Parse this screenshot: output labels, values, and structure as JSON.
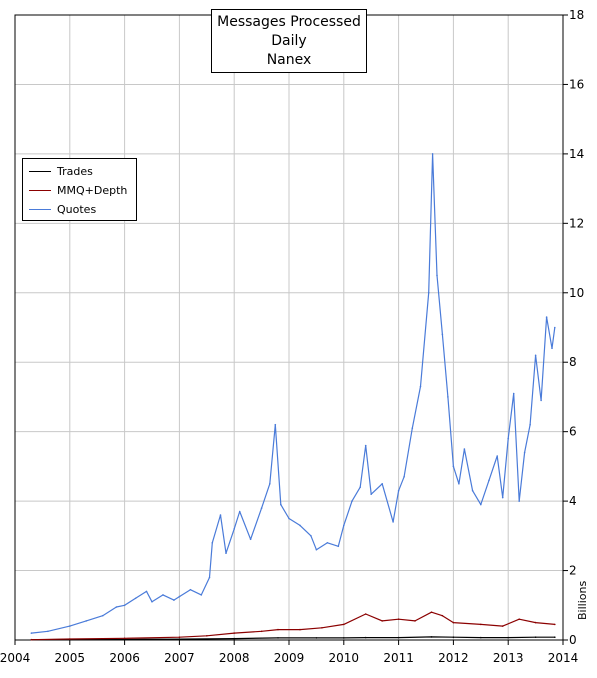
{
  "chart_data": {
    "type": "line",
    "title": [
      "Messages Processed",
      "Daily",
      "Nanex"
    ],
    "xlabel": "",
    "ylabel": "Billions",
    "xlim": [
      2004,
      2014
    ],
    "ylim": [
      0,
      18
    ],
    "x_ticks": [
      "2004",
      "2005",
      "2006",
      "2007",
      "2008",
      "2009",
      "2010",
      "2011",
      "2012",
      "2013",
      "2014"
    ],
    "y_ticks": [
      "0",
      "2",
      "4",
      "6",
      "8",
      "10",
      "12",
      "14",
      "16",
      "18"
    ],
    "grid": true,
    "legend_position": "left",
    "series": [
      {
        "name": "Trades",
        "color": "#000000",
        "x": [
          2004.3,
          2005.0,
          2006.0,
          2007.0,
          2008.0,
          2008.8,
          2009.5,
          2010.0,
          2010.4,
          2011.0,
          2011.6,
          2012.0,
          2012.5,
          2013.0,
          2013.5,
          2013.85
        ],
        "y": [
          0.01,
          0.015,
          0.02,
          0.025,
          0.04,
          0.06,
          0.06,
          0.06,
          0.07,
          0.07,
          0.09,
          0.08,
          0.07,
          0.07,
          0.08,
          0.08
        ]
      },
      {
        "name": "MMQ+Depth",
        "color": "#8b0000",
        "x": [
          2004.3,
          2005.0,
          2006.0,
          2007.0,
          2007.5,
          2008.0,
          2008.5,
          2008.8,
          2009.2,
          2009.6,
          2010.0,
          2010.4,
          2010.7,
          2011.0,
          2011.3,
          2011.6,
          2011.8,
          2012.0,
          2012.5,
          2012.9,
          2013.2,
          2013.5,
          2013.85
        ],
        "y": [
          0.01,
          0.03,
          0.05,
          0.08,
          0.12,
          0.2,
          0.25,
          0.3,
          0.3,
          0.35,
          0.45,
          0.75,
          0.55,
          0.6,
          0.55,
          0.8,
          0.7,
          0.5,
          0.45,
          0.4,
          0.6,
          0.5,
          0.45
        ]
      },
      {
        "name": "Quotes",
        "color": "#4a7bd9",
        "x": [
          2004.3,
          2004.6,
          2005.0,
          2005.3,
          2005.6,
          2005.85,
          2006.0,
          2006.2,
          2006.4,
          2006.5,
          2006.7,
          2006.9,
          2007.0,
          2007.2,
          2007.4,
          2007.55,
          2007.6,
          2007.75,
          2007.85,
          2008.0,
          2008.1,
          2008.3,
          2008.5,
          2008.65,
          2008.75,
          2008.85,
          2009.0,
          2009.2,
          2009.4,
          2009.5,
          2009.7,
          2009.9,
          2010.0,
          2010.15,
          2010.3,
          2010.4,
          2010.5,
          2010.7,
          2010.9,
          2011.0,
          2011.1,
          2011.25,
          2011.4,
          2011.55,
          2011.62,
          2011.7,
          2011.8,
          2011.9,
          2012.0,
          2012.1,
          2012.2,
          2012.35,
          2012.5,
          2012.65,
          2012.8,
          2012.9,
          2013.0,
          2013.1,
          2013.2,
          2013.3,
          2013.4,
          2013.5,
          2013.6,
          2013.7,
          2013.8,
          2013.85
        ],
        "y": [
          0.2,
          0.25,
          0.4,
          0.55,
          0.7,
          0.95,
          1.0,
          1.2,
          1.4,
          1.1,
          1.3,
          1.15,
          1.25,
          1.45,
          1.3,
          1.8,
          2.8,
          3.6,
          2.5,
          3.2,
          3.7,
          2.9,
          3.8,
          4.5,
          6.2,
          3.9,
          3.5,
          3.3,
          3.0,
          2.6,
          2.8,
          2.7,
          3.3,
          4.0,
          4.4,
          5.6,
          4.2,
          4.5,
          3.4,
          4.3,
          4.7,
          6.1,
          7.3,
          10.0,
          14.0,
          10.5,
          8.8,
          7.0,
          5.0,
          4.5,
          5.5,
          4.3,
          3.9,
          4.6,
          5.3,
          4.1,
          5.8,
          7.1,
          4.0,
          5.4,
          6.2,
          8.2,
          6.9,
          9.3,
          8.4,
          9.0
        ]
      }
    ]
  }
}
